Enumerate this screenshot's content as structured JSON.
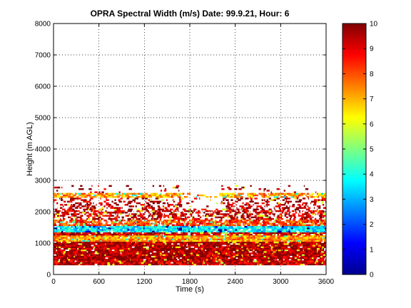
{
  "chart_data": {
    "type": "heatmap",
    "title": "OPRA Spectral Width (m/s)  Date: 99.9.21, Hour: 6",
    "xlabel": "Time (s)",
    "ylabel": "Height (m AGL)",
    "xlim": [
      0,
      3600
    ],
    "ylim": [
      0,
      8000
    ],
    "xticks": [
      "0",
      "600",
      "1200",
      "1800",
      "2400",
      "3000",
      "3600"
    ],
    "yticks": [
      "0",
      "1000",
      "2000",
      "3000",
      "4000",
      "5000",
      "6000",
      "7000",
      "8000"
    ],
    "grid": true,
    "colorbar": {
      "range": [
        0,
        10
      ],
      "ticks": [
        "0",
        "1",
        "2",
        "3",
        "4",
        "5",
        "6",
        "7",
        "8",
        "9",
        "10"
      ],
      "colormap": "jet"
    },
    "layers": [
      {
        "height_range": [
          300,
          450
        ],
        "value": 9.3,
        "coverage": 0.97
      },
      {
        "height_range": [
          450,
          1050
        ],
        "value": 9.6,
        "coverage": 0.96
      },
      {
        "height_range": [
          1050,
          1250
        ],
        "value": 7.3,
        "coverage": 0.95
      },
      {
        "height_range": [
          1250,
          1350
        ],
        "value": 9.2,
        "coverage": 0.9
      },
      {
        "height_range": [
          1350,
          1550
        ],
        "value": 3.6,
        "coverage": 0.9
      },
      {
        "height_range": [
          1550,
          1750
        ],
        "value": 8.2,
        "coverage": 0.8
      },
      {
        "height_range": [
          1750,
          2100
        ],
        "value": 9.3,
        "coverage": 0.55
      },
      {
        "height_range": [
          2100,
          2450
        ],
        "value": 9.5,
        "coverage": 0.35
      },
      {
        "height_range": [
          2450,
          2600
        ],
        "value": 7.2,
        "coverage": 0.8
      },
      {
        "height_range": [
          2600,
          2850
        ],
        "value": 9.7,
        "coverage": 0.07
      }
    ]
  }
}
